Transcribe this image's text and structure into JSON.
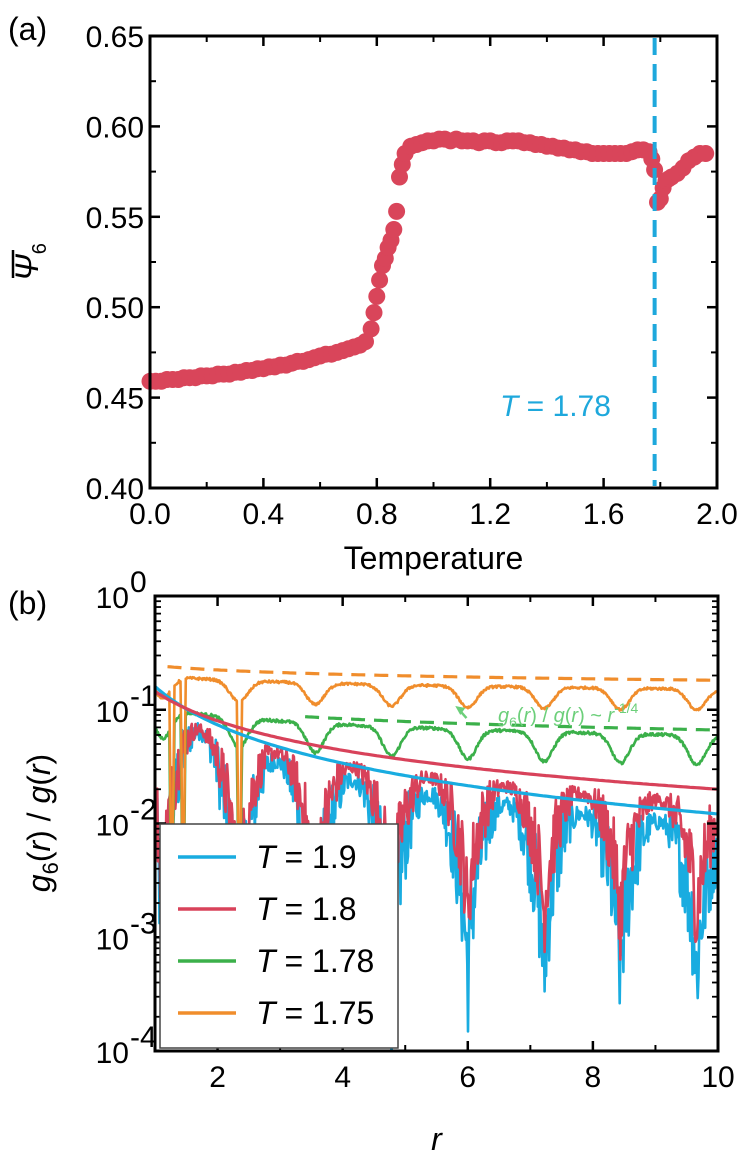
{
  "chart_data": [
    {
      "panel": "(a)",
      "type": "scatter",
      "xlabel": "Temperature",
      "ylabel": "Ψ̄6",
      "ylabel_main": "Ψ",
      "ylabel_sub": "6",
      "xlim": [
        0.0,
        2.0
      ],
      "ylim": [
        0.4,
        0.65
      ],
      "xticks": [
        0.0,
        0.4,
        0.8,
        1.2,
        1.6,
        2.0
      ],
      "xtick_labels": [
        "0.0",
        "0.4",
        "0.8",
        "1.2",
        "1.6",
        "2.0"
      ],
      "yticks": [
        0.4,
        0.45,
        0.5,
        0.55,
        0.6,
        0.65
      ],
      "ytick_labels": [
        "0.40",
        "0.45",
        "0.50",
        "0.55",
        "0.60",
        "0.65"
      ],
      "marker_color": "#d9455a",
      "vline": {
        "x": 1.78,
        "color": "#1ea8dc",
        "label_var": "T",
        "label_rest": " = 1.78"
      },
      "points": [
        [
          0.0,
          0.459
        ],
        [
          0.02,
          0.459
        ],
        [
          0.04,
          0.459
        ],
        [
          0.06,
          0.46
        ],
        [
          0.08,
          0.46
        ],
        [
          0.1,
          0.46
        ],
        [
          0.12,
          0.461
        ],
        [
          0.14,
          0.461
        ],
        [
          0.16,
          0.461
        ],
        [
          0.18,
          0.462
        ],
        [
          0.2,
          0.462
        ],
        [
          0.22,
          0.462
        ],
        [
          0.24,
          0.463
        ],
        [
          0.26,
          0.463
        ],
        [
          0.28,
          0.463
        ],
        [
          0.3,
          0.464
        ],
        [
          0.32,
          0.464
        ],
        [
          0.34,
          0.465
        ],
        [
          0.36,
          0.465
        ],
        [
          0.38,
          0.466
        ],
        [
          0.4,
          0.466
        ],
        [
          0.42,
          0.467
        ],
        [
          0.44,
          0.467
        ],
        [
          0.46,
          0.468
        ],
        [
          0.48,
          0.468
        ],
        [
          0.5,
          0.469
        ],
        [
          0.52,
          0.47
        ],
        [
          0.54,
          0.47
        ],
        [
          0.56,
          0.471
        ],
        [
          0.58,
          0.472
        ],
        [
          0.6,
          0.473
        ],
        [
          0.62,
          0.474
        ],
        [
          0.64,
          0.474
        ],
        [
          0.66,
          0.475
        ],
        [
          0.68,
          0.476
        ],
        [
          0.7,
          0.477
        ],
        [
          0.72,
          0.478
        ],
        [
          0.74,
          0.479
        ],
        [
          0.76,
          0.481
        ],
        [
          0.78,
          0.488
        ],
        [
          0.79,
          0.497
        ],
        [
          0.8,
          0.506
        ],
        [
          0.81,
          0.515
        ],
        [
          0.82,
          0.523
        ],
        [
          0.83,
          0.527
        ],
        [
          0.84,
          0.533
        ],
        [
          0.85,
          0.537
        ],
        [
          0.86,
          0.543
        ],
        [
          0.87,
          0.553
        ],
        [
          0.88,
          0.572
        ],
        [
          0.89,
          0.579
        ],
        [
          0.9,
          0.585
        ],
        [
          0.92,
          0.589
        ],
        [
          0.94,
          0.59
        ],
        [
          0.96,
          0.591
        ],
        [
          0.98,
          0.592
        ],
        [
          1.0,
          0.592
        ],
        [
          1.02,
          0.593
        ],
        [
          1.04,
          0.593
        ],
        [
          1.06,
          0.592
        ],
        [
          1.08,
          0.593
        ],
        [
          1.1,
          0.592
        ],
        [
          1.12,
          0.592
        ],
        [
          1.14,
          0.592
        ],
        [
          1.16,
          0.591
        ],
        [
          1.18,
          0.592
        ],
        [
          1.2,
          0.592
        ],
        [
          1.22,
          0.591
        ],
        [
          1.24,
          0.591
        ],
        [
          1.26,
          0.592
        ],
        [
          1.28,
          0.592
        ],
        [
          1.3,
          0.592
        ],
        [
          1.32,
          0.591
        ],
        [
          1.34,
          0.591
        ],
        [
          1.36,
          0.59
        ],
        [
          1.38,
          0.59
        ],
        [
          1.4,
          0.589
        ],
        [
          1.42,
          0.589
        ],
        [
          1.44,
          0.588
        ],
        [
          1.46,
          0.588
        ],
        [
          1.48,
          0.587
        ],
        [
          1.5,
          0.587
        ],
        [
          1.52,
          0.586
        ],
        [
          1.54,
          0.586
        ],
        [
          1.56,
          0.585
        ],
        [
          1.58,
          0.585
        ],
        [
          1.6,
          0.585
        ],
        [
          1.62,
          0.585
        ],
        [
          1.64,
          0.585
        ],
        [
          1.66,
          0.585
        ],
        [
          1.68,
          0.585
        ],
        [
          1.7,
          0.586
        ],
        [
          1.72,
          0.587
        ],
        [
          1.74,
          0.587
        ],
        [
          1.76,
          0.586
        ],
        [
          1.77,
          0.582
        ],
        [
          1.78,
          0.576
        ],
        [
          1.79,
          0.558
        ],
        [
          1.8,
          0.56
        ],
        [
          1.81,
          0.566
        ],
        [
          1.82,
          0.57
        ],
        [
          1.83,
          0.571
        ],
        [
          1.84,
          0.572
        ],
        [
          1.86,
          0.574
        ],
        [
          1.88,
          0.577
        ],
        [
          1.9,
          0.581
        ],
        [
          1.92,
          0.583
        ],
        [
          1.94,
          0.585
        ],
        [
          1.96,
          0.585
        ]
      ]
    },
    {
      "panel": "(b)",
      "type": "line",
      "yscale": "log",
      "xlabel": "r",
      "ylabel_parts": [
        "g",
        "6",
        "(",
        "r",
        ") / ",
        "g",
        "(",
        "r",
        ")"
      ],
      "xlim": [
        1.0,
        10.0
      ],
      "ylim_exp": [
        -4,
        0
      ],
      "xticks": [
        2,
        4,
        6,
        8,
        10
      ],
      "xtick_labels": [
        "2",
        "4",
        "6",
        "8",
        "10"
      ],
      "ytick_exps": [
        -4,
        -3,
        -2,
        -1,
        0
      ],
      "ytick_labels": [
        {
          "base": "10",
          "exp": "-4"
        },
        {
          "base": "10",
          "exp": "-3"
        },
        {
          "base": "10",
          "exp": "-2"
        },
        {
          "base": "10",
          "exp": "-1"
        },
        {
          "base": "10",
          "exp": "0"
        }
      ],
      "series": [
        {
          "name": "T = 1.9",
          "legend_var": "T",
          "legend_rest": " = 1.9",
          "color": "#19ace0",
          "envelope_a": 0.155,
          "envelope_exp": -1.1,
          "dip_floor_exp": -3.6,
          "noise": 1.0,
          "mean_frac": 0.55
        },
        {
          "name": "T = 1.8",
          "legend_var": "T",
          "legend_rest": " = 1.8",
          "color": "#d8425a",
          "envelope_a": 0.14,
          "envelope_exp": -0.85,
          "dip_floor_exp": -3.0,
          "noise": 0.75,
          "mean_frac": 0.6
        },
        {
          "name": "T = 1.78",
          "legend_var": "T",
          "legend_rest": " = 1.78",
          "color": "#3bb04a",
          "baseline": 0.105,
          "baseline_exp": -0.25,
          "dip_depth": 0.45,
          "noise": 0.06
        },
        {
          "name": "T = 1.75",
          "legend_var": "T",
          "legend_rest": " = 1.75",
          "color": "#f08d2c",
          "baseline": 0.2,
          "baseline_exp": -0.12,
          "dip_depth": 0.35,
          "noise": 0.05
        }
      ],
      "fits": [
        {
          "kind": "power",
          "color": "#19ace0",
          "a": 0.16,
          "exponent": -1.12
        },
        {
          "kind": "power",
          "color": "#d8425a",
          "a": 0.145,
          "exponent": -0.86
        },
        {
          "kind": "power_dashed",
          "color": "#3bb04a",
          "a": 0.118,
          "exponent": -0.25,
          "x_from": 3.4
        },
        {
          "kind": "power_dashed",
          "color": "#f08d2c",
          "a": 0.245,
          "exponent": -0.13,
          "x_from": 1.2
        }
      ],
      "annotation": {
        "color": "#6ccf7a",
        "parts": [
          "g",
          "6",
          "(",
          "r",
          ") / ",
          "g",
          "(",
          "r",
          ") ~ ",
          "r",
          "-1/4"
        ],
        "arrow_to": [
          5.8,
          0.108
        ],
        "text_at": [
          5.5,
          0.052
        ]
      },
      "legend_position": "bottom-left"
    }
  ]
}
